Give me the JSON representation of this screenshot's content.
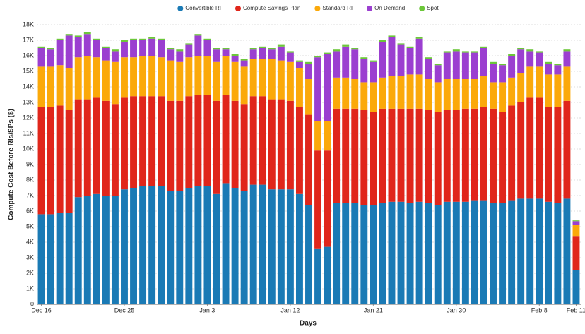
{
  "chart_data": {
    "type": "stacked_bar",
    "x_label": "Days",
    "y_label": "Compute Cost Before RIs/SPs ($)",
    "categories": [
      "Dec 16",
      null,
      null,
      null,
      null,
      null,
      null,
      null,
      null,
      "Dec 25",
      null,
      null,
      null,
      null,
      null,
      null,
      null,
      null,
      "Jan 3",
      null,
      null,
      null,
      null,
      null,
      null,
      null,
      null,
      "Jan 12",
      null,
      null,
      null,
      null,
      null,
      null,
      null,
      null,
      "Jan 21",
      null,
      null,
      null,
      null,
      null,
      null,
      null,
      null,
      "Jan 30",
      null,
      null,
      null,
      null,
      null,
      null,
      null,
      null,
      "Feb 8",
      null,
      null,
      null,
      "Feb 11"
    ],
    "ylim": [
      0,
      18000
    ],
    "yticks": [
      0,
      {
        "value": 1000,
        "label": "1K"
      },
      {
        "value": 2000,
        "label": "2K"
      },
      {
        "value": 3000,
        "label": "3K"
      },
      {
        "value": 4000,
        "label": "4K"
      },
      {
        "value": 5000,
        "label": "5K"
      },
      {
        "value": 6000,
        "label": "6K"
      },
      {
        "value": 7000,
        "label": "7K"
      },
      {
        "value": 8000,
        "label": "8K"
      },
      {
        "value": 9000,
        "label": "9K"
      },
      {
        "value": 10000,
        "label": "10K"
      },
      {
        "value": 11000,
        "label": "11K"
      },
      {
        "value": 12000,
        "label": "12K"
      },
      {
        "value": 13000,
        "label": "13K"
      },
      {
        "value": 14000,
        "label": "14K"
      },
      {
        "value": 15000,
        "label": "15K"
      },
      {
        "value": 16000,
        "label": "16K"
      },
      {
        "value": 17000,
        "label": "17K"
      },
      {
        "value": 18000,
        "label": "18K"
      }
    ],
    "grid": true,
    "legend": "top",
    "series": [
      {
        "name": "Convertible RI",
        "color": "#1a7ab5",
        "values": [
          5800,
          5800,
          5900,
          5900,
          6900,
          7000,
          7100,
          7000,
          7000,
          7400,
          7500,
          7600,
          7600,
          7600,
          7300,
          7300,
          7500,
          7600,
          7600,
          7100,
          7800,
          7500,
          7300,
          7700,
          7700,
          7400,
          7400,
          7400,
          7100,
          6400,
          3600,
          3700,
          6500,
          6500,
          6500,
          6400,
          6400,
          6500,
          6600,
          6600,
          6500,
          6600,
          6500,
          6400,
          6600,
          6600,
          6600,
          6700,
          6700,
          6500,
          6500,
          6700,
          6800,
          6800,
          6800,
          6600,
          6500,
          6800,
          2200
        ]
      },
      {
        "name": "Compute Savings Plan",
        "color": "#e0261b",
        "values": [
          6900,
          6900,
          6900,
          6600,
          6300,
          6200,
          6200,
          6100,
          5900,
          5900,
          5900,
          5800,
          5800,
          5800,
          5800,
          5800,
          5900,
          5900,
          5900,
          6000,
          5700,
          5600,
          5600,
          5700,
          5700,
          5800,
          5800,
          5700,
          5600,
          5800,
          6300,
          6200,
          6100,
          6100,
          6100,
          6100,
          6000,
          6100,
          6000,
          6000,
          6100,
          6000,
          6000,
          6000,
          5900,
          5900,
          6000,
          5900,
          6000,
          6100,
          5900,
          6100,
          6200,
          6500,
          6500,
          6100,
          6200,
          6300,
          2200
        ]
      },
      {
        "name": "Standard RI",
        "color": "#fba90a",
        "values": [
          2600,
          2600,
          2600,
          2700,
          2700,
          2800,
          2600,
          2600,
          2700,
          2600,
          2500,
          2600,
          2600,
          2500,
          2600,
          2500,
          2500,
          2500,
          2500,
          2500,
          2500,
          2500,
          2400,
          2400,
          2400,
          2600,
          2500,
          2500,
          2500,
          2300,
          1900,
          1900,
          2000,
          2000,
          1900,
          1800,
          1900,
          2000,
          2100,
          2100,
          2200,
          2200,
          2000,
          1900,
          2000,
          2000,
          1900,
          1900,
          2000,
          1700,
          1900,
          1800,
          1900,
          2000,
          2000,
          2100,
          2100,
          2200,
          700
        ]
      },
      {
        "name": "On Demand",
        "color": "#9b3fd0",
        "values": [
          1200,
          1100,
          1600,
          2100,
          1300,
          1400,
          1100,
          800,
          700,
          1000,
          1100,
          1000,
          1100,
          1100,
          700,
          700,
          800,
          1300,
          1000,
          800,
          400,
          400,
          400,
          600,
          700,
          600,
          900,
          600,
          400,
          1000,
          4100,
          4300,
          1700,
          2000,
          1900,
          1500,
          1300,
          2300,
          2500,
          2000,
          1700,
          2300,
          1300,
          1100,
          1700,
          1800,
          1700,
          1700,
          1800,
          1200,
          1100,
          1400,
          1500,
          1000,
          900,
          700,
          600,
          1000,
          250
        ]
      },
      {
        "name": "Spot",
        "color": "#6cc73a",
        "values": [
          100,
          100,
          100,
          100,
          100,
          100,
          100,
          100,
          100,
          100,
          100,
          100,
          100,
          100,
          100,
          100,
          100,
          100,
          100,
          100,
          100,
          100,
          100,
          100,
          100,
          100,
          100,
          100,
          100,
          100,
          100,
          100,
          100,
          100,
          100,
          100,
          100,
          100,
          100,
          100,
          100,
          100,
          100,
          100,
          100,
          100,
          100,
          100,
          100,
          100,
          100,
          100,
          100,
          100,
          100,
          100,
          100,
          100,
          50
        ]
      }
    ]
  }
}
